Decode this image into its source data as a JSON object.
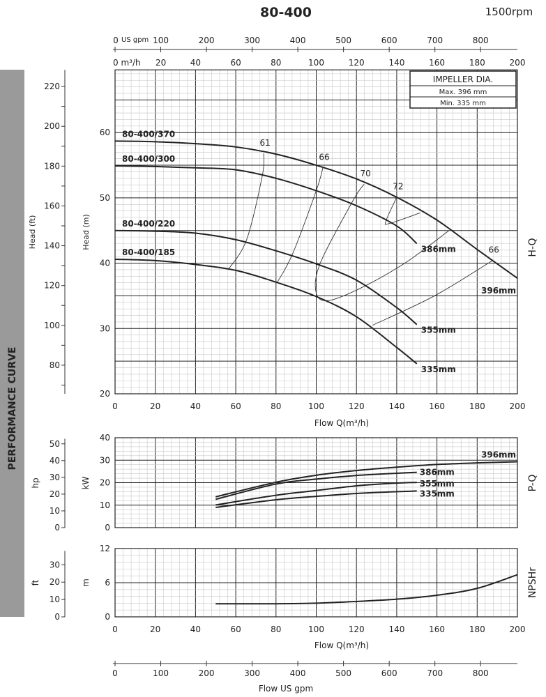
{
  "header": {
    "title": "80-400",
    "speed": "1500rpm"
  },
  "side_band": {
    "label": "PERFORMANCE CURVE",
    "color": "#9a9a9a"
  },
  "impeller_box": {
    "title": "IMPELLER DIA.",
    "max": "Max.  396  mm",
    "min": "Min.   335  mm"
  },
  "top_axes": {
    "gpm_unit": "US gpm",
    "gpm_ticks": [
      "0",
      "100",
      "200",
      "300",
      "400",
      "500",
      "600",
      "700",
      "800"
    ],
    "m3h_unit": "0 m³/h",
    "m3h_ticks": [
      "20",
      "40",
      "60",
      "80",
      "100",
      "120",
      "140",
      "160",
      "180",
      "200"
    ]
  },
  "bottom_axis": {
    "gpm_ticks": [
      "0",
      "100",
      "200",
      "300",
      "400",
      "500",
      "600",
      "700",
      "800"
    ],
    "label": "Flow  US gpm"
  },
  "x_ticks": [
    "0",
    "20",
    "40",
    "60",
    "80",
    "100",
    "120",
    "140",
    "160",
    "180",
    "200"
  ],
  "flow_label": "Flow  Q(m³/h)",
  "side_labels": {
    "hq": "H-Q",
    "pq": "P-Q",
    "npsh": "NPSHr"
  },
  "chart_data": [
    {
      "type": "line",
      "title": "H-Q",
      "xlabel": "Flow  Q(m³/h)",
      "ylabel": "Head (m)",
      "y2label": "Head (ft)",
      "xlim": [
        0,
        200
      ],
      "ylim": [
        20,
        70
      ],
      "yticks": [
        "20",
        "30",
        "40",
        "50",
        "60"
      ],
      "y2ticks": [
        "80",
        "100",
        "120",
        "140",
        "160",
        "180",
        "200",
        "220"
      ],
      "grid": true,
      "series": [
        {
          "name": "396mm",
          "model": "80-400/370",
          "x": [
            0,
            20,
            40,
            60,
            80,
            100,
            120,
            140,
            160,
            180,
            200
          ],
          "y": [
            58.7,
            58.6,
            58.3,
            57.8,
            56.7,
            55.0,
            52.9,
            50.1,
            46.6,
            42.1,
            37.7
          ]
        },
        {
          "name": "386mm",
          "model": "80-400/300",
          "x": [
            0,
            20,
            40,
            60,
            80,
            100,
            120,
            140,
            150
          ],
          "y": [
            54.9,
            54.8,
            54.6,
            54.3,
            53.0,
            51.1,
            48.8,
            45.7,
            43.0
          ]
        },
        {
          "name": "355mm",
          "model": "80-400/220",
          "x": [
            0,
            20,
            40,
            60,
            80,
            100,
            120,
            140,
            150
          ],
          "y": [
            45.0,
            44.9,
            44.6,
            43.6,
            41.9,
            39.9,
            37.4,
            33.2,
            30.6
          ]
        },
        {
          "name": "335mm",
          "model": "80-400/185",
          "x": [
            0,
            20,
            40,
            60,
            80,
            100,
            120,
            140,
            150
          ],
          "y": [
            40.6,
            40.4,
            39.8,
            38.9,
            37.1,
            34.9,
            31.8,
            27.1,
            24.6
          ]
        }
      ],
      "efficiency": [
        {
          "label": "61",
          "points": [
            [
              73.9,
              56.8
            ],
            [
              73.2,
              53.4
            ],
            [
              65.4,
              43.6
            ],
            [
              56.2,
              39.0
            ]
          ]
        },
        {
          "label": "66",
          "points": [
            [
              103.3,
              54.6
            ],
            [
              100,
              51.1
            ],
            [
              88.2,
              41.4
            ],
            [
              80.7,
              37.1
            ]
          ]
        },
        {
          "label": "70",
          "points": [
            [
              123.8,
              52.1
            ],
            [
              118.3,
              49.6
            ],
            [
              102,
              40.0
            ],
            [
              100,
              35.4
            ],
            [
              106.5,
              34.3
            ],
            [
              123.5,
              36.4
            ],
            [
              145,
              40.2
            ],
            [
              166,
              45.0
            ]
          ]
        },
        {
          "label": "72",
          "points": [
            [
              140,
              50.1
            ],
            [
              134.6,
              46.4
            ],
            [
              136.6,
              46.1
            ],
            [
              151.6,
              47.7
            ]
          ]
        },
        {
          "label": "66",
          "points": [
            [
              187.6,
              40.4
            ],
            [
              158.8,
              35.0
            ],
            [
              128,
              30.5
            ]
          ]
        }
      ]
    },
    {
      "type": "line",
      "title": "P-Q",
      "ylabel": "kW",
      "y2label": "hp",
      "xlim": [
        0,
        200
      ],
      "ylim": [
        0,
        40
      ],
      "yticks": [
        "0",
        "10",
        "20",
        "30",
        "40"
      ],
      "y2ticks": [
        "0",
        "10",
        "20",
        "30",
        "40",
        "50"
      ],
      "grid": true,
      "series": [
        {
          "name": "396mm",
          "x": [
            50,
            80,
            100,
            120,
            140,
            160,
            180,
            200
          ],
          "y": [
            13.7,
            20.2,
            23.3,
            25.4,
            26.9,
            28.1,
            28.8,
            29.3
          ]
        },
        {
          "name": "386mm",
          "x": [
            50,
            80,
            100,
            120,
            140,
            150
          ],
          "y": [
            12.6,
            19.4,
            21.6,
            23.2,
            24.2,
            24.6
          ]
        },
        {
          "name": "355mm",
          "x": [
            50,
            80,
            100,
            120,
            140,
            150
          ],
          "y": [
            10.1,
            14.4,
            16.5,
            18.6,
            19.8,
            20.1
          ]
        },
        {
          "name": "335mm",
          "x": [
            50,
            80,
            100,
            120,
            140,
            150
          ],
          "y": [
            9.0,
            12.4,
            13.9,
            15.2,
            16.0,
            16.3
          ]
        }
      ]
    },
    {
      "type": "line",
      "title": "NPSHr",
      "xlabel": "Flow  Q(m³/h)",
      "ylabel": "m",
      "y2label": "ft",
      "xlim": [
        0,
        200
      ],
      "ylim": [
        0,
        12
      ],
      "yticks": [
        "0",
        "6",
        "12"
      ],
      "y2ticks": [
        "0",
        "10",
        "20",
        "30"
      ],
      "grid": true,
      "series": [
        {
          "name": "NPSHr",
          "x": [
            50,
            60,
            80,
            100,
            120,
            140,
            160,
            180,
            200
          ],
          "y": [
            2.3,
            2.3,
            2.3,
            2.4,
            2.7,
            3.1,
            3.8,
            5.0,
            7.4
          ]
        }
      ]
    }
  ]
}
